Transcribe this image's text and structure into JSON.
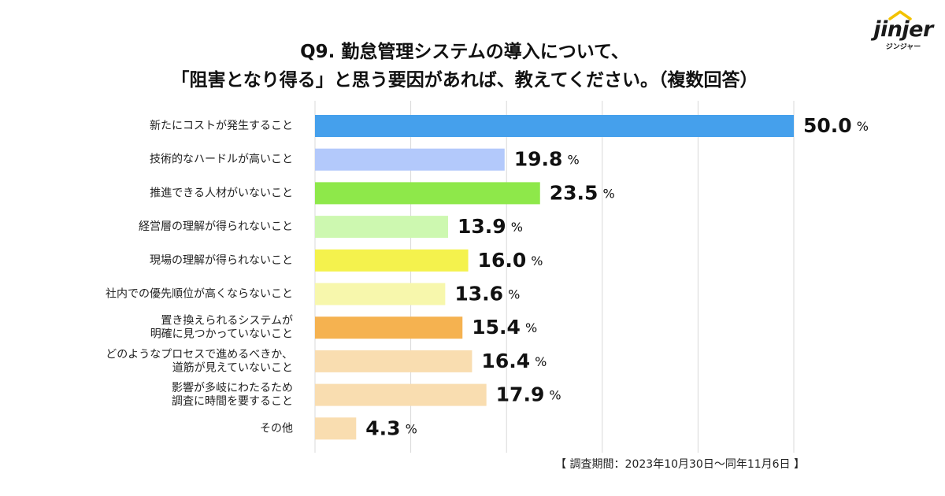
{
  "logo": {
    "word": "jinjer",
    "sub": "ジンジャー"
  },
  "title": {
    "line1": "Q9. 勤怠管理システムの導入について、",
    "line2": "「阻害となり得る」と思う要因があれば、教えてください。（複数回答）"
  },
  "footnote": "【 調査期間：2023年10月30日〜同年11月6日 】",
  "chart_data": {
    "type": "bar",
    "orientation": "horizontal",
    "unit": "%",
    "xlim": [
      0,
      50
    ],
    "grid": true,
    "categories": [
      [
        "新たにコストが発生すること"
      ],
      [
        "技術的なハードルが高いこと"
      ],
      [
        "推進できる人材がいないこと"
      ],
      [
        "経営層の理解が得られないこと"
      ],
      [
        "現場の理解が得られないこと"
      ],
      [
        "社内での優先順位が高くならないこと"
      ],
      [
        "置き換えられるシステムが",
        "明確に見つかっていないこと"
      ],
      [
        "どのようなプロセスで進めるべきか、",
        "道筋が見えていないこと"
      ],
      [
        "影響が多岐にわたるため",
        "調査に時間を要すること"
      ],
      [
        "その他"
      ]
    ],
    "values": [
      50.0,
      19.8,
      23.5,
      13.9,
      16.0,
      13.6,
      15.4,
      16.4,
      17.9,
      4.3
    ],
    "value_labels": [
      "50.0",
      "19.8",
      "23.5",
      "13.9",
      "16.0",
      "13.6",
      "15.4",
      "16.4",
      "17.9",
      "4.3"
    ],
    "colors": [
      "#45a0ec",
      "#b3c9fb",
      "#8ee84a",
      "#cdf8b0",
      "#f4f24d",
      "#f7f7ac",
      "#f5b250",
      "#f9ddb0",
      "#f9ddb0",
      "#f9ddb0"
    ]
  }
}
